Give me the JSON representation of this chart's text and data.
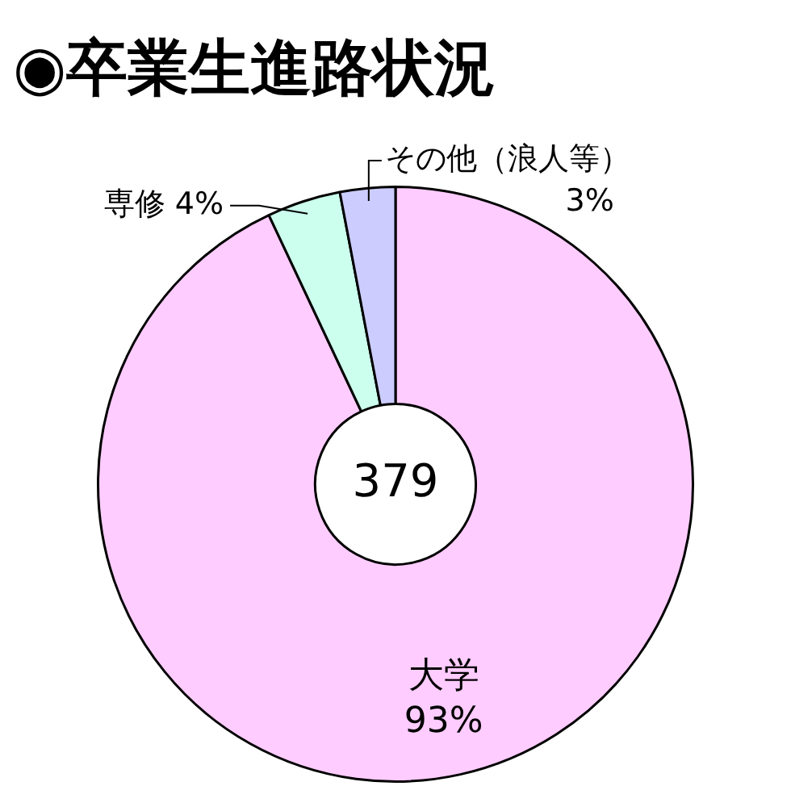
{
  "chart_data": {
    "type": "donut",
    "title": "◉卒業生進路状況",
    "categories": [
      "大学",
      "専修",
      "その他（浪人等）"
    ],
    "values": [
      93,
      4,
      3
    ],
    "value_labels": [
      "93%",
      "4%",
      "3%"
    ],
    "colors": [
      "#ffccff",
      "#ccffee",
      "#ccccff"
    ],
    "legend": false,
    "annotations": [
      "379"
    ]
  }
}
